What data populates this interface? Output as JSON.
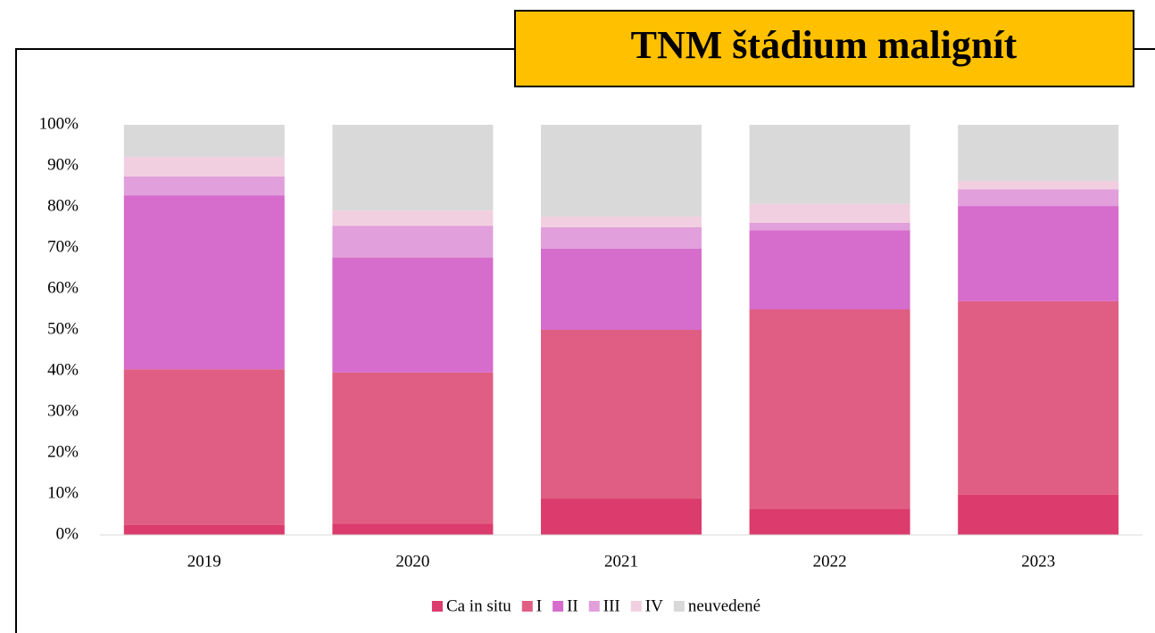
{
  "chart_data": {
    "type": "stacked_bar",
    "title": "TNM štádium malignít",
    "categories": [
      "2019",
      "2020",
      "2021",
      "2022",
      "2023"
    ],
    "series": [
      {
        "name": "Ca in situ",
        "color": "#dc3b6d",
        "values": [
          2.4,
          2.8,
          8.9,
          6.3,
          9.8
        ]
      },
      {
        "name": "I",
        "color": "#e05e83",
        "values": [
          38.0,
          36.8,
          41.1,
          48.7,
          47.2
        ]
      },
      {
        "name": "II",
        "color": "#d66ccb",
        "values": [
          42.4,
          28.0,
          19.8,
          19.3,
          23.2
        ]
      },
      {
        "name": "III",
        "color": "#e19fdb",
        "values": [
          4.6,
          7.8,
          5.2,
          1.8,
          4.1
        ]
      },
      {
        "name": "IV",
        "color": "#f2cfe0",
        "values": [
          4.8,
          3.7,
          2.6,
          4.6,
          2.0
        ]
      },
      {
        "name": "neuvedené",
        "color": "#d9d9d9",
        "values": [
          7.8,
          20.9,
          22.4,
          19.3,
          13.7
        ]
      }
    ],
    "ylim": [
      0,
      100
    ],
    "yticks": [
      {
        "value": 0,
        "label": "0%"
      },
      {
        "value": 10,
        "label": "10%"
      },
      {
        "value": 20,
        "label": "20%"
      },
      {
        "value": 30,
        "label": "30%"
      },
      {
        "value": 40,
        "label": "40%"
      },
      {
        "value": 50,
        "label": "50%"
      },
      {
        "value": 60,
        "label": "60%"
      },
      {
        "value": 70,
        "label": "70%"
      },
      {
        "value": 80,
        "label": "80%"
      },
      {
        "value": 90,
        "label": "90%"
      },
      {
        "value": 100,
        "label": "100%"
      }
    ],
    "legend": "bottom"
  }
}
